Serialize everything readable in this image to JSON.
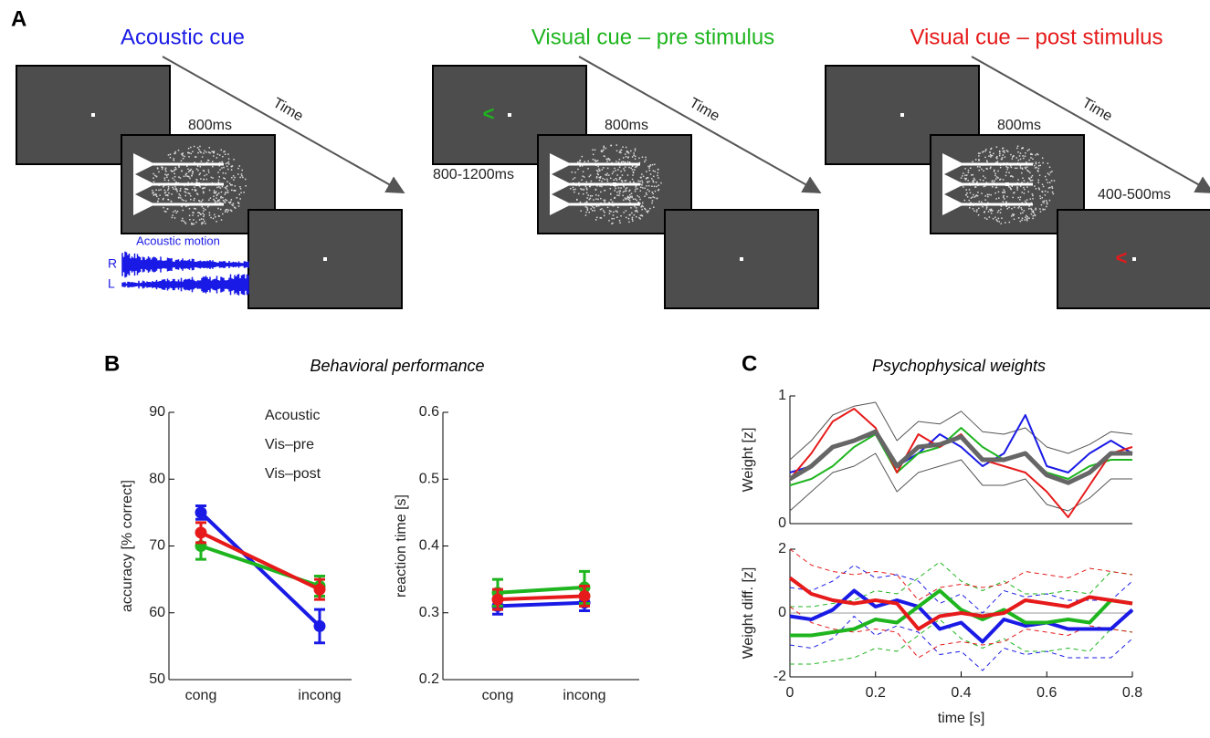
{
  "panel_labels": [
    "A",
    "B",
    "C"
  ],
  "diagram": {
    "panels": [
      {
        "title": "Acoustic cue",
        "time": "Time",
        "duration": "800ms",
        "motion_label": "Acoustic motion",
        "channels": [
          "R",
          "L"
        ]
      },
      {
        "title": "Visual cue – pre stimulus",
        "time": "Time",
        "duration": "800ms",
        "interval": "800-1200ms"
      },
      {
        "title": "Visual cue – post stimulus",
        "time": "Time",
        "duration": "800ms",
        "interval": "400-500ms"
      }
    ]
  },
  "panel_titles": [
    "Behavioral performance",
    "Psychophysical weights"
  ],
  "chart_data": [
    {
      "type": "errorline",
      "ylabel": "accuracy [% correct]",
      "categories": [
        "cong",
        "incong"
      ],
      "ylim": [
        50,
        90
      ],
      "yticks": [
        50,
        60,
        70,
        80,
        90
      ],
      "legend": "upper right",
      "series": [
        {
          "name": "Acoustic",
          "color": "#1a1ae6",
          "values": [
            75,
            58
          ],
          "errors": [
            1,
            2.5
          ]
        },
        {
          "name": "Vis–pre",
          "color": "#1fb51f",
          "values": [
            70,
            64
          ],
          "errors": [
            2,
            1.5
          ]
        },
        {
          "name": "Vis–post",
          "color": "#e61a1a",
          "values": [
            72,
            63.5
          ],
          "errors": [
            1.5,
            1.5
          ]
        }
      ]
    },
    {
      "type": "errorline",
      "ylabel": "reaction time [s]",
      "categories": [
        "cong",
        "incong"
      ],
      "ylim": [
        0.2,
        0.6
      ],
      "yticks": [
        0.2,
        0.3,
        0.4,
        0.5,
        0.6
      ],
      "series": [
        {
          "color": "#1a1ae6",
          "values": [
            0.31,
            0.315
          ],
          "errors": [
            0.012,
            0.012
          ]
        },
        {
          "color": "#1fb51f",
          "values": [
            0.33,
            0.338
          ],
          "errors": [
            0.02,
            0.024
          ]
        },
        {
          "color": "#e61a1a",
          "values": [
            0.32,
            0.325
          ],
          "errors": [
            0.015,
            0.015
          ]
        }
      ]
    },
    {
      "type": "line",
      "ylabel": "Weight [z]",
      "xlim": [
        0,
        0.8
      ],
      "ylim": [
        0,
        1
      ],
      "yticks": [
        0,
        1
      ],
      "x": [
        0,
        0.05,
        0.1,
        0.15,
        0.2,
        0.25,
        0.3,
        0.35,
        0.4,
        0.45,
        0.5,
        0.55,
        0.6,
        0.65,
        0.7,
        0.75,
        0.8
      ],
      "series": [
        {
          "color": "#555555",
          "width": 1,
          "values": [
            0.5,
            0.65,
            0.85,
            0.92,
            0.95,
            0.65,
            0.8,
            0.78,
            0.88,
            0.72,
            0.7,
            0.75,
            0.6,
            0.55,
            0.62,
            0.72,
            0.7
          ]
        },
        {
          "color": "#555555",
          "width": 1,
          "values": [
            0.1,
            0.25,
            0.4,
            0.45,
            0.55,
            0.25,
            0.4,
            0.45,
            0.5,
            0.3,
            0.3,
            0.35,
            0.15,
            0.1,
            0.2,
            0.35,
            0.35
          ]
        },
        {
          "color": "#1a1ae6",
          "width": 2,
          "values": [
            0.4,
            0.45,
            0.6,
            0.65,
            0.7,
            0.45,
            0.55,
            0.7,
            0.6,
            0.45,
            0.55,
            0.85,
            0.45,
            0.4,
            0.55,
            0.65,
            0.55
          ]
        },
        {
          "color": "#1fb51f",
          "width": 2,
          "values": [
            0.3,
            0.35,
            0.45,
            0.6,
            0.7,
            0.4,
            0.55,
            0.6,
            0.75,
            0.6,
            0.5,
            0.55,
            0.4,
            0.35,
            0.45,
            0.5,
            0.5
          ]
        },
        {
          "color": "#e61a1a",
          "width": 2,
          "values": [
            0.35,
            0.55,
            0.8,
            0.9,
            0.75,
            0.4,
            0.7,
            0.6,
            0.7,
            0.5,
            0.45,
            0.4,
            0.25,
            0.05,
            0.3,
            0.55,
            0.6
          ]
        },
        {
          "color": "#666666",
          "width": 5,
          "values": [
            0.35,
            0.45,
            0.6,
            0.65,
            0.72,
            0.45,
            0.6,
            0.62,
            0.68,
            0.5,
            0.5,
            0.55,
            0.38,
            0.32,
            0.4,
            0.55,
            0.55
          ]
        }
      ]
    },
    {
      "type": "line",
      "ylabel": "Weight diff. [z]",
      "xlabel": "time [s]",
      "xlim": [
        0,
        0.8
      ],
      "ylim": [
        -2,
        2
      ],
      "yticks": [
        -2,
        0,
        2
      ],
      "xticks": [
        0,
        0.2,
        0.4,
        0.6,
        0.8
      ],
      "zero_line": true,
      "x": [
        0,
        0.05,
        0.1,
        0.15,
        0.2,
        0.25,
        0.3,
        0.35,
        0.4,
        0.45,
        0.5,
        0.55,
        0.6,
        0.65,
        0.7,
        0.75,
        0.8
      ],
      "series": [
        {
          "color": "#1a1ae6",
          "width": 1,
          "dash": true,
          "values": [
            0.8,
            0.7,
            1.0,
            1.5,
            1.1,
            1.2,
            1.0,
            0.3,
            0.6,
            0.0,
            0.7,
            0.5,
            0.6,
            0.4,
            0.4,
            0.4,
            1.0
          ]
        },
        {
          "color": "#1a1ae6",
          "width": 1,
          "dash": true,
          "values": [
            -1.0,
            -1.1,
            -0.8,
            -0.1,
            -0.7,
            -0.4,
            -0.6,
            -1.3,
            -1.2,
            -1.8,
            -1.1,
            -1.3,
            -1.2,
            -1.4,
            -1.4,
            -1.4,
            -0.8
          ]
        },
        {
          "color": "#1fb51f",
          "width": 1,
          "dash": true,
          "values": [
            0.2,
            0.2,
            0.3,
            0.4,
            0.7,
            0.6,
            1.1,
            1.6,
            1.0,
            0.7,
            1.0,
            0.6,
            0.6,
            0.7,
            0.6,
            1.3,
            1.2
          ]
        },
        {
          "color": "#1fb51f",
          "width": 1,
          "dash": true,
          "values": [
            -1.6,
            -1.6,
            -1.5,
            -1.4,
            -1.1,
            -1.2,
            -0.7,
            -0.2,
            -0.8,
            -1.1,
            -0.8,
            -1.2,
            -1.2,
            -1.1,
            -1.2,
            -0.5,
            -0.6
          ]
        },
        {
          "color": "#e61a1a",
          "width": 1,
          "dash": true,
          "values": [
            2.0,
            1.5,
            1.3,
            1.2,
            1.3,
            1.2,
            0.4,
            0.8,
            0.9,
            0.8,
            0.9,
            1.3,
            1.2,
            1.1,
            1.4,
            1.3,
            1.2
          ]
        },
        {
          "color": "#e61a1a",
          "width": 1,
          "dash": true,
          "values": [
            0.2,
            -0.3,
            -0.5,
            -0.6,
            -0.5,
            -0.6,
            -1.4,
            -1.0,
            -0.9,
            -1.0,
            -0.9,
            -0.5,
            -0.6,
            -0.7,
            -0.4,
            -0.5,
            -0.6
          ]
        },
        {
          "color": "#1a1ae6",
          "width": 4,
          "values": [
            -0.1,
            -0.2,
            0.1,
            0.7,
            0.2,
            0.4,
            0.2,
            -0.5,
            -0.3,
            -0.9,
            -0.2,
            -0.4,
            -0.3,
            -0.5,
            -0.5,
            -0.5,
            0.1
          ]
        },
        {
          "color": "#1fb51f",
          "width": 4,
          "values": [
            -0.7,
            -0.7,
            -0.6,
            -0.5,
            -0.2,
            -0.3,
            0.2,
            0.7,
            0.1,
            -0.2,
            0.1,
            -0.3,
            -0.3,
            -0.2,
            -0.3,
            0.4,
            0.3
          ]
        },
        {
          "color": "#e61a1a",
          "width": 4,
          "values": [
            1.1,
            0.6,
            0.4,
            0.3,
            0.4,
            0.3,
            -0.5,
            -0.1,
            0.0,
            -0.1,
            0.0,
            0.4,
            0.3,
            0.2,
            0.5,
            0.4,
            0.3
          ]
        }
      ]
    }
  ]
}
